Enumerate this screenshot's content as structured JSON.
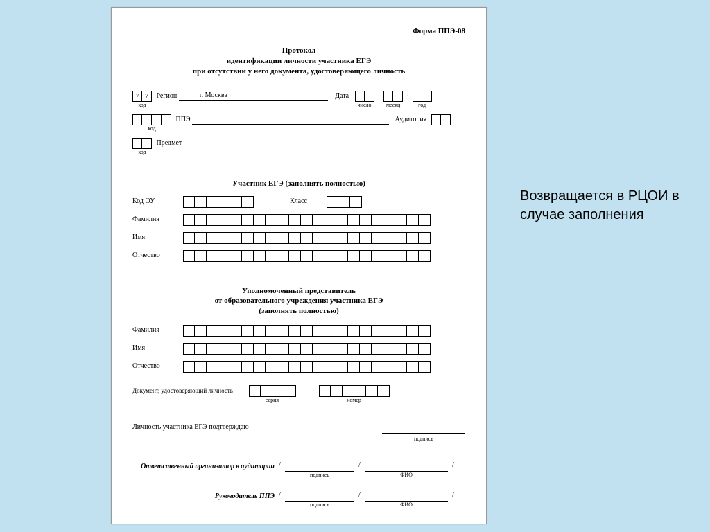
{
  "form_code": "Форма ППЭ-08",
  "title_lines": [
    "Протокол",
    "идентификации личности участника ЕГЭ",
    "при отсутствии у него документа, удостоверяющего личность"
  ],
  "row1": {
    "region_code": [
      "7",
      "7"
    ],
    "region_code_caption": "код",
    "region_label": "Регион",
    "region_value": "г. Москва",
    "date_label": "Дата",
    "date_day_caption": "число",
    "date_month_caption": "месяц",
    "date_year_caption": "год"
  },
  "row2": {
    "ppe_label": "ППЭ",
    "ppe_code_caption": "код",
    "aud_label": "Аудитория"
  },
  "row3": {
    "subj_label": "Предмет",
    "subj_code_caption": "код"
  },
  "section1_title": "Участник ЕГЭ (заполнять полностью)",
  "labels": {
    "kod_ou": "Код ОУ",
    "klass": "Класс",
    "fam": "Фамилия",
    "name": "Имя",
    "otch": "Отчество"
  },
  "section2_title_lines": [
    "Уполномоченный представитель",
    "от образовательного учреждения участника ЕГЭ",
    "(заполнять полностью)"
  ],
  "doc_label": "Документ, удостоверяющий личность",
  "doc_series_caption": "серия",
  "doc_number_caption": "номер",
  "confirm_text": "Личность участника ЕГЭ подтверждаю",
  "sign_caption": "подпись",
  "fio_caption": "ФИО",
  "sig1_role": "Ответственный организатор в аудитории",
  "sig2_role": "Руководитель ППЭ",
  "annotation": "Возвращается в РЦОИ в случае заполнения",
  "cell_counts": {
    "kod_ou": 6,
    "klass": 3,
    "long": 21,
    "doc_series": 4,
    "doc_number": 6,
    "date_part": 2,
    "ppe": 4,
    "aud": 2,
    "subj": 2
  },
  "colors": {
    "page_bg": "#ffffff",
    "body_bg": "#c2e1f0",
    "line": "#000000"
  }
}
